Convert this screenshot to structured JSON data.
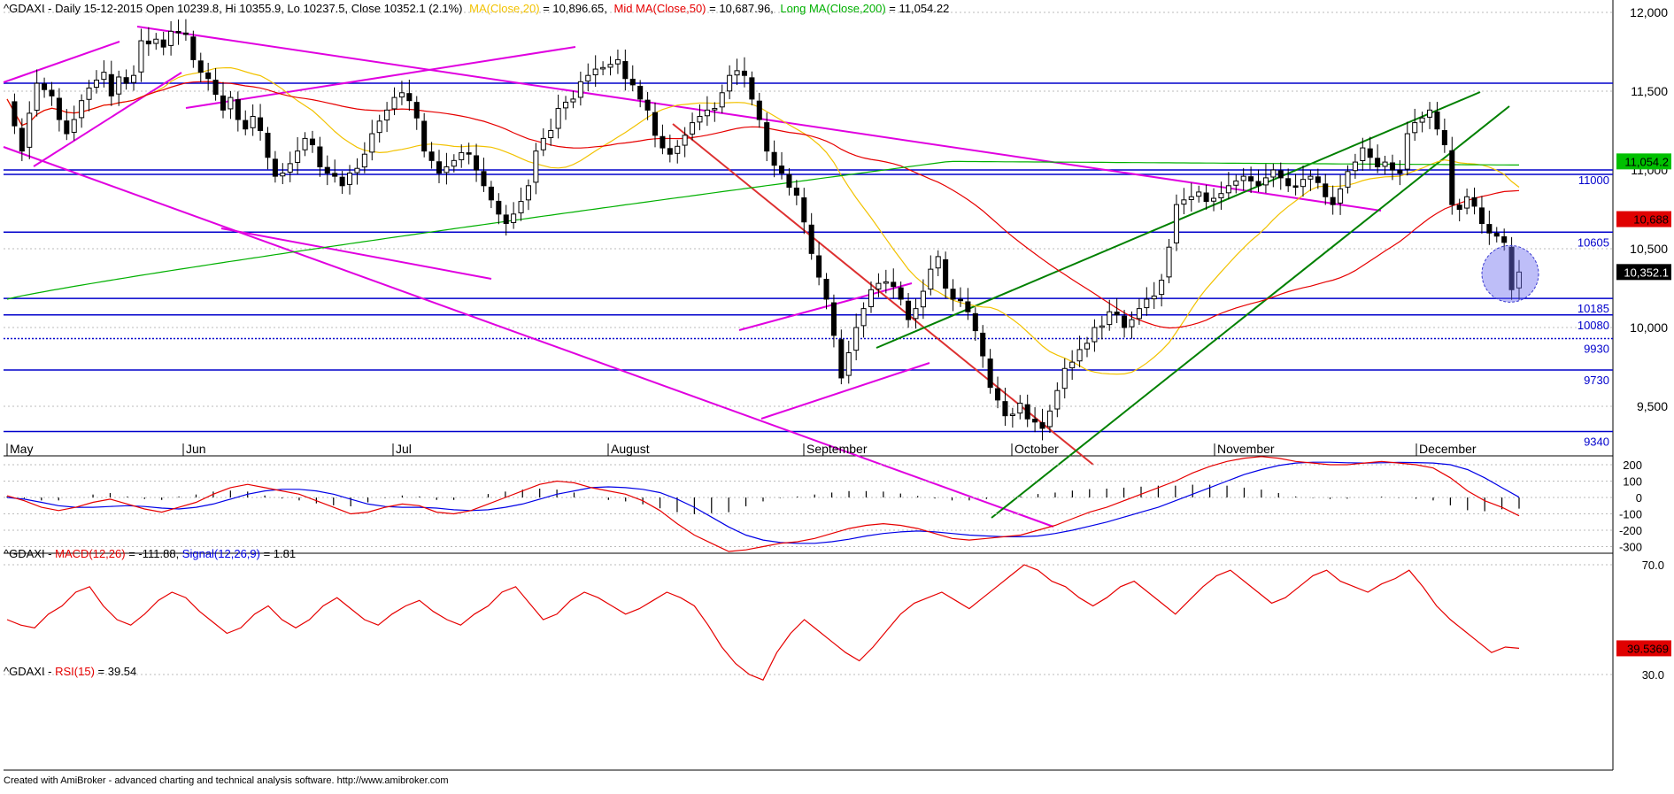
{
  "header": {
    "main_ticker": "^GDAXI - Daily 15-12-2015 Open 10239.8, Hi 10355.9, Lo 10237.5, Close 10352.1 (2.1%)",
    "ma20_text": "MA(Close,20)",
    "ma20_value": " = 10,896.65,",
    "ma50_text": "Mid MA(Close,50)",
    "ma50_value": " = 10,687.96,",
    "ma200_text": "Long MA(Close,200)",
    "ma200_value": " = 11,054.22",
    "macd_ticker": "^GDAXI - ",
    "macd_text": "MACD(12,26)",
    "macd_value": " = -111.88, ",
    "signal_text": "Signal(12,26,9)",
    "signal_value": " = 1.81",
    "rsi_ticker": "^GDAXI - ",
    "rsi_text": "RSI(15)",
    "rsi_value": " = 39.54"
  },
  "footer": {
    "text": "Created with AmiBroker - advanced charting and technical analysis software. http://www.amibroker.com"
  },
  "colors": {
    "up_candle": "#ffffff",
    "down_candle": "#000000",
    "ma20": "#f2c200",
    "ma50": "#e60000",
    "ma200": "#00b000",
    "support_lines": "#0000cc",
    "channel_magenta": "#e000e0",
    "trend_green": "#008000",
    "macd": "#e60000",
    "signal": "#0000e6",
    "rsi": "#e60000"
  },
  "chart_data": [
    {
      "type": "candlestick",
      "title": "^GDAXI - Daily 15-12-2015",
      "ylim": [
        9300,
        12050
      ],
      "y_ticks": [
        "12,000",
        "11,500",
        "11,000",
        "10,500",
        "10,000",
        "9,500"
      ],
      "y_tick_values": [
        12000,
        11500,
        11000,
        10500,
        10000,
        9500
      ],
      "x_months": [
        "May",
        "Jun",
        "Jul",
        "August",
        "September",
        "October",
        "November",
        "December"
      ],
      "level_labels": [
        "11000",
        "10605",
        "10185",
        "10080",
        "9930",
        "9730",
        "9340"
      ],
      "level_values": [
        11000,
        10605,
        10185,
        10080,
        9930,
        9730,
        9340
      ],
      "highlight_values": [
        "11,054.2",
        "10,688",
        "10,352.1"
      ],
      "last_close": 10352.1,
      "ma20_last": 10896.65,
      "ma50_last": 10687.96,
      "ma200_last": 11054.22,
      "close_series": [
        11450,
        11280,
        11120,
        11360,
        11550,
        11510,
        11470,
        11320,
        11230,
        11320,
        11440,
        11520,
        11570,
        11620,
        11470,
        11590,
        11550,
        11600,
        11820,
        11800,
        11830,
        11780,
        11880,
        11870,
        11860,
        11700,
        11620,
        11580,
        11480,
        11380,
        11460,
        11320,
        11260,
        11340,
        11250,
        11080,
        10960,
        10980,
        11040,
        11120,
        11200,
        11160,
        11020,
        10980,
        10960,
        10900,
        10980,
        11010,
        11100,
        11230,
        11310,
        11380,
        11460,
        11490,
        11440,
        11330,
        11120,
        11060,
        10980,
        11020,
        11060,
        11110,
        11100,
        11000,
        10900,
        10810,
        10720,
        10660,
        10720,
        10800,
        10900,
        11120,
        11200,
        11250,
        11390,
        11430,
        11450,
        11560,
        11600,
        11640,
        11650,
        11670,
        11700,
        11580,
        11540,
        11450,
        11380,
        11220,
        11140,
        11100,
        11150,
        11220,
        11300,
        11340,
        11380,
        11390,
        11490,
        11600,
        11630,
        11600,
        11450,
        11320,
        11120,
        11030,
        10980,
        10890,
        10840,
        10670,
        10470,
        10320,
        10180,
        9950,
        9680,
        9840,
        10000,
        10120,
        10240,
        10280,
        10290,
        10260,
        10180,
        10050,
        10120,
        10230,
        10370,
        10450,
        10250,
        10180,
        10170,
        10100,
        9980,
        9820,
        9620,
        9540,
        9440,
        9450,
        9520,
        9420,
        9400,
        9360,
        9470,
        9600,
        9740,
        9780,
        9860,
        9900,
        10000,
        10010,
        10100,
        10080,
        10000,
        10050,
        10120,
        10180,
        10200,
        10300,
        10510,
        10780,
        10810,
        10830,
        10860,
        10800,
        10820,
        10850,
        10900,
        10930,
        10960,
        10930,
        10900,
        10950,
        11000,
        10950,
        10900,
        10890,
        10940,
        10960,
        10920,
        10830,
        10780,
        10880,
        10990,
        11050,
        11140,
        11080,
        11020,
        11050,
        11000,
        10980,
        11230,
        11300,
        11330,
        11380,
        11260,
        11160,
        10780,
        10750,
        10830,
        10770,
        10660,
        10600,
        10580,
        10540,
        10240,
        10352.1
      ]
    },
    {
      "type": "line",
      "title": "^GDAXI - MACD(12,26) = -111.88, Signal(12,26,9) = 1.81",
      "ylim": [
        -350,
        260
      ],
      "y_ticks": [
        "200",
        "100",
        "0",
        "-100",
        "-200",
        "-300"
      ],
      "y_tick_values": [
        200,
        100,
        0,
        -100,
        -200,
        -300
      ],
      "series": [
        {
          "name": "MACD(12,26)",
          "values": [
            10,
            -20,
            -60,
            -80,
            -60,
            -30,
            -10,
            -40,
            -70,
            -90,
            -60,
            -30,
            20,
            60,
            80,
            60,
            40,
            20,
            -20,
            -60,
            -100,
            -90,
            -60,
            -40,
            -50,
            -90,
            -100,
            -80,
            -40,
            0,
            40,
            80,
            100,
            90,
            60,
            40,
            20,
            -20,
            -80,
            -160,
            -230,
            -280,
            -330,
            -320,
            -300,
            -280,
            -270,
            -250,
            -220,
            -190,
            -170,
            -160,
            -170,
            -190,
            -220,
            -250,
            -260,
            -250,
            -240,
            -230,
            -200,
            -170,
            -130,
            -90,
            -60,
            -20,
            20,
            60,
            100,
            150,
            190,
            220,
            240,
            250,
            240,
            220,
            210,
            200,
            200,
            210,
            220,
            210,
            200,
            180,
            120,
            40,
            -20,
            -60,
            -111.88
          ]
        },
        {
          "name": "Signal(12,26,9)",
          "values": [
            0,
            -10,
            -30,
            -50,
            -60,
            -60,
            -55,
            -50,
            -55,
            -65,
            -70,
            -60,
            -40,
            -10,
            20,
            40,
            50,
            50,
            40,
            20,
            -10,
            -40,
            -55,
            -60,
            -60,
            -65,
            -75,
            -80,
            -75,
            -60,
            -40,
            -10,
            20,
            40,
            60,
            65,
            60,
            50,
            30,
            -10,
            -60,
            -120,
            -180,
            -230,
            -260,
            -275,
            -280,
            -280,
            -270,
            -255,
            -235,
            -220,
            -210,
            -205,
            -210,
            -220,
            -230,
            -235,
            -240,
            -240,
            -235,
            -220,
            -200,
            -175,
            -150,
            -120,
            -90,
            -60,
            -20,
            20,
            60,
            100,
            140,
            170,
            195,
            210,
            215,
            215,
            212,
            210,
            212,
            214,
            213,
            210,
            200,
            170,
            120,
            60,
            1.81
          ]
        }
      ]
    },
    {
      "type": "line",
      "title": "^GDAXI - RSI(15) = 39.54",
      "ylim": [
        25,
        72
      ],
      "y_ticks": [
        "70.0",
        "30.0"
      ],
      "y_tick_values": [
        70,
        30
      ],
      "highlight_value": "39.5369",
      "series": [
        {
          "name": "RSI(15)",
          "values": [
            50,
            48,
            47,
            52,
            55,
            60,
            62,
            55,
            50,
            48,
            52,
            57,
            60,
            58,
            53,
            49,
            45,
            47,
            52,
            55,
            50,
            47,
            50,
            55,
            58,
            54,
            50,
            48,
            52,
            55,
            57,
            53,
            50,
            48,
            52,
            55,
            60,
            62,
            56,
            50,
            52,
            57,
            60,
            58,
            55,
            52,
            54,
            57,
            60,
            58,
            55,
            48,
            40,
            34,
            30,
            28,
            38,
            45,
            50,
            46,
            42,
            38,
            35,
            40,
            46,
            52,
            56,
            58,
            60,
            57,
            54,
            58,
            62,
            66,
            70,
            68,
            64,
            62,
            58,
            55,
            58,
            62,
            64,
            60,
            56,
            52,
            57,
            62,
            66,
            68,
            64,
            60,
            56,
            58,
            62,
            66,
            68,
            64,
            62,
            60,
            63,
            65,
            68,
            62,
            55,
            50,
            46,
            42,
            38,
            40,
            39.54
          ]
        }
      ]
    }
  ]
}
